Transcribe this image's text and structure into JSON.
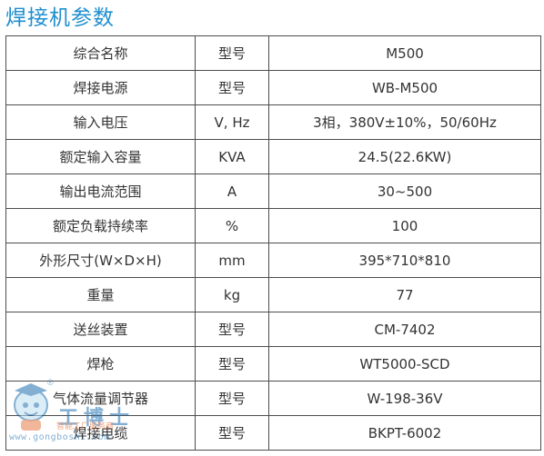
{
  "title": "焊接机参数",
  "rows": [
    {
      "name": "综合名称",
      "unit": "型号",
      "value": "M500"
    },
    {
      "name": "焊接电源",
      "unit": "型号",
      "value": "WB-M500"
    },
    {
      "name": "输入电压",
      "unit": "V, Hz",
      "value": "3相，380V±10%，50/60Hz"
    },
    {
      "name": "额定输入容量",
      "unit": "KVA",
      "value": "24.5(22.6KW)"
    },
    {
      "name": "输出电流范围",
      "unit": "A",
      "value": "30~500"
    },
    {
      "name": "额定负载持续率",
      "unit": "%",
      "value": "100"
    },
    {
      "name": "外形尺寸(W×D×H)",
      "unit": "mm",
      "value": "395*710*810"
    },
    {
      "name": "重量",
      "unit": "kg",
      "value": "77"
    },
    {
      "name": "送丝装置",
      "unit": "型号",
      "value": "CM-7402"
    },
    {
      "name": "焊枪",
      "unit": "型号",
      "value": "WT5000-SCD"
    },
    {
      "name": "气体流量调节器",
      "unit": "型号",
      "value": "W-198-36V"
    },
    {
      "name": "焊接电缆",
      "unit": "型号",
      "value": "BKPT-6002"
    }
  ],
  "watermark": {
    "brand": "工博士",
    "reg": "®",
    "slogan": "智能工厂服务商",
    "url": "www.gongboshi.com",
    "colors": {
      "primary": "#1f6fb0",
      "accent": "#e05a1a"
    }
  },
  "colors": {
    "title": "#1f8fcf",
    "border": "#4d4d4d",
    "text": "#333333"
  }
}
